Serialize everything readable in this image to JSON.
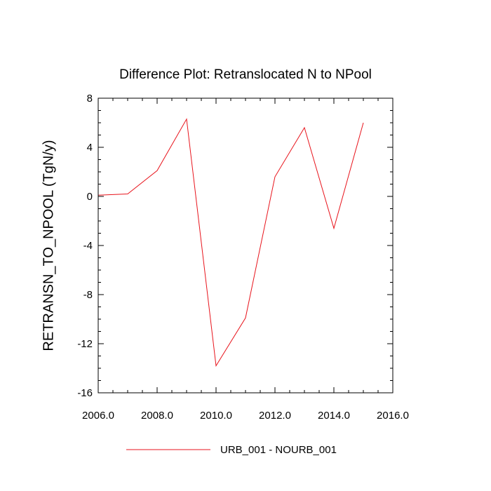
{
  "chart_data": {
    "type": "line",
    "title": "Difference Plot: Retranslocated N to NPool",
    "xlabel": "",
    "ylabel": "RETRANSN_TO_NPOOL  (TgN/y)",
    "xlim": [
      2006,
      2016
    ],
    "ylim": [
      -16,
      8
    ],
    "x_ticks": [
      2006,
      2008,
      2010,
      2012,
      2014,
      2016
    ],
    "x_tick_labels": [
      "2006.0",
      "2008.0",
      "2010.0",
      "2012.0",
      "2014.0",
      "2016.0"
    ],
    "y_ticks": [
      -16,
      -12,
      -8,
      -4,
      0,
      4,
      8
    ],
    "y_tick_labels": [
      "-16",
      "-12",
      "-8",
      "-4",
      "0",
      "4",
      "8"
    ],
    "grid": false,
    "legend_position": "bottom-center",
    "series": [
      {
        "name": "URB_001 - NOURB_001",
        "color": "#e8141c",
        "x": [
          2006,
          2007,
          2008,
          2009,
          2010,
          2011,
          2012,
          2013,
          2014,
          2015
        ],
        "values": [
          0.1,
          0.2,
          2.1,
          6.3,
          -13.8,
          -9.9,
          1.6,
          5.6,
          -2.6,
          6.0
        ]
      }
    ]
  }
}
